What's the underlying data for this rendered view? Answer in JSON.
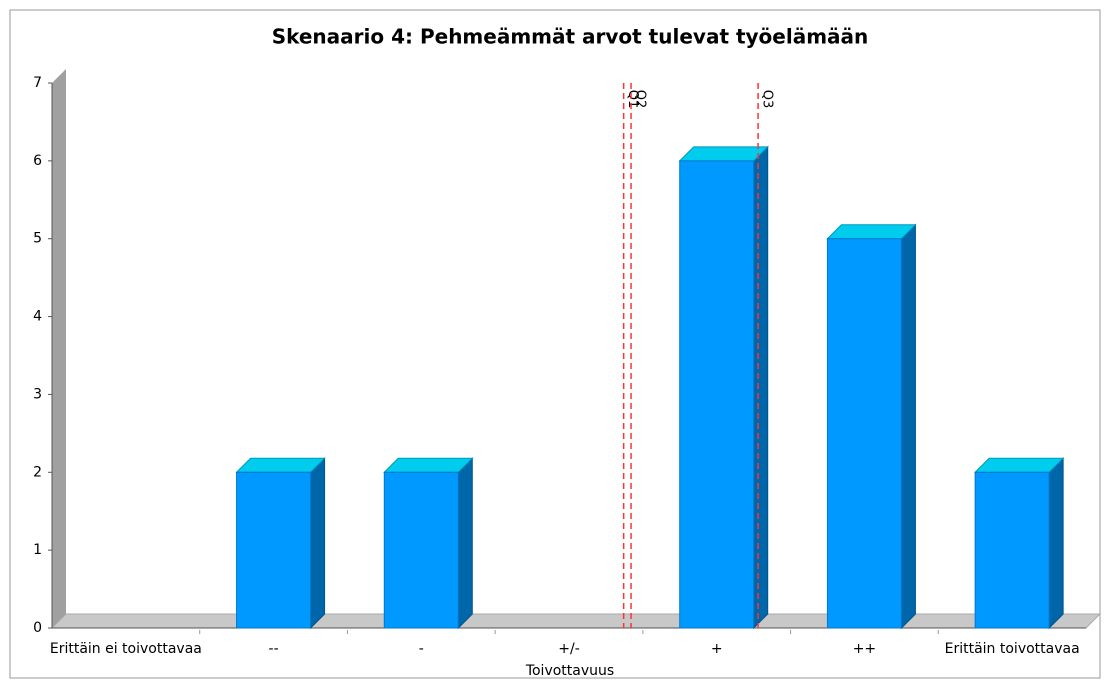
{
  "chart_data": {
    "type": "bar",
    "title": "Skenaario 4: Pehmeämmät arvot tulevat työelämään",
    "categories": [
      "Erittäin ei toivottavaa",
      "--",
      "-",
      "+/-",
      "+",
      "++",
      "Erittäin toivottavaa"
    ],
    "values": [
      0,
      2,
      2,
      0,
      6,
      5,
      2
    ],
    "color": "#0099ff",
    "x_label": "Toivottavuus",
    "ylim": [
      0,
      7
    ],
    "yticks": [
      0,
      1,
      2,
      3,
      4,
      5,
      6,
      7
    ],
    "grid": false,
    "markers": [
      {
        "label": "Q1",
        "x": 3.37,
        "color": "#ff3333"
      },
      {
        "label": "Q2",
        "x": 3.42,
        "color": "#ff3333"
      },
      {
        "label": "Q3",
        "x": 4.28,
        "color": "#ff3333"
      }
    ]
  }
}
